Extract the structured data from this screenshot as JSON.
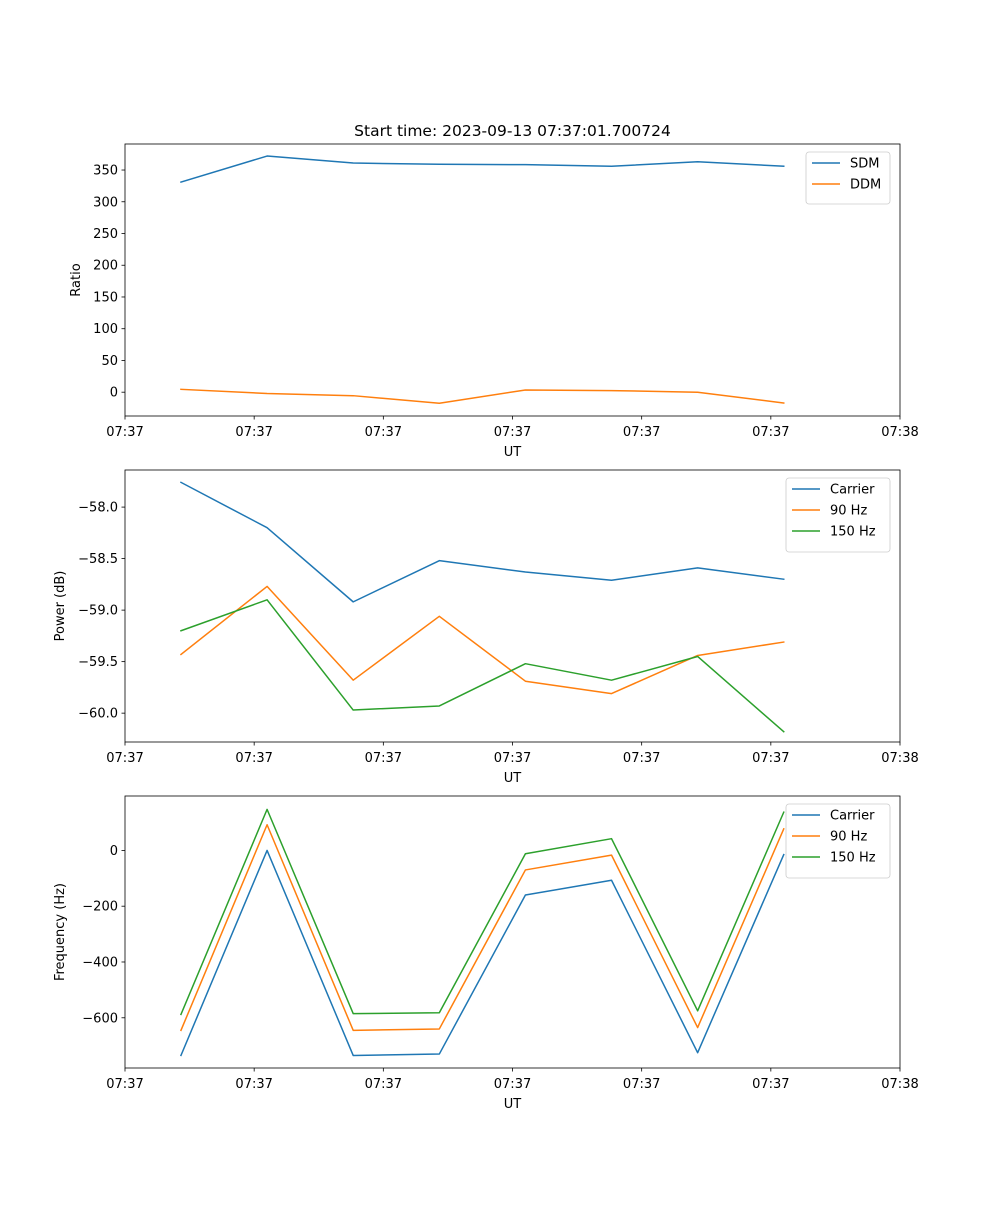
{
  "figure": {
    "title": "Start time: 2023-09-13 07:37:01.700724"
  },
  "chart_data": [
    {
      "type": "line",
      "title": "Start time: 2023-09-13 07:37:01.700724",
      "xlabel": "UT",
      "ylabel": "Ratio",
      "x": [
        0.85,
        1.85,
        2.85,
        3.85,
        4.85,
        5.85,
        6.85,
        7.85
      ],
      "xlim": [
        0.2,
        9.2
      ],
      "xticks": [
        0.2,
        1.7,
        3.2,
        4.7,
        6.2,
        7.7,
        9.2
      ],
      "xtick_labels": [
        "07:37",
        "07:37",
        "07:37",
        "07:37",
        "07:37",
        "07:37",
        "07:38"
      ],
      "ylim": [
        -37.5,
        391
      ],
      "yticks": [
        0,
        50,
        100,
        150,
        200,
        250,
        300,
        350
      ],
      "ytick_labels": [
        "0",
        "50",
        "100",
        "150",
        "200",
        "250",
        "300",
        "350"
      ],
      "legend": "top-right",
      "series": [
        {
          "name": "SDM",
          "color": "#1f77b4",
          "values": [
            331,
            372,
            361,
            359,
            358.5,
            356,
            363,
            356
          ]
        },
        {
          "name": "DDM",
          "color": "#ff7f0e",
          "values": [
            4.5,
            -2,
            -5.5,
            -17.5,
            3.5,
            2.5,
            0,
            -17
          ]
        }
      ]
    },
    {
      "type": "line",
      "xlabel": "UT",
      "ylabel": "Power (dB)",
      "x": [
        0.85,
        1.85,
        2.85,
        3.85,
        4.85,
        5.85,
        6.85,
        7.85
      ],
      "xlim": [
        0.2,
        9.2
      ],
      "xticks": [
        0.2,
        1.7,
        3.2,
        4.7,
        6.2,
        7.7,
        9.2
      ],
      "xtick_labels": [
        "07:37",
        "07:37",
        "07:37",
        "07:37",
        "07:37",
        "07:37",
        "07:38"
      ],
      "ylim": [
        -60.28,
        -57.64
      ],
      "yticks": [
        -60.0,
        -59.5,
        -59.0,
        -58.5,
        -58.0
      ],
      "ytick_labels": [
        "−60.0",
        "−59.5",
        "−59.0",
        "−58.5",
        "−58.0"
      ],
      "legend": "top-right",
      "series": [
        {
          "name": "Carrier",
          "color": "#1f77b4",
          "values": [
            -57.76,
            -58.2,
            -58.92,
            -58.52,
            -58.63,
            -58.71,
            -58.59,
            -58.7
          ]
        },
        {
          "name": "90 Hz",
          "color": "#ff7f0e",
          "values": [
            -59.43,
            -58.77,
            -59.68,
            -59.06,
            -59.69,
            -59.81,
            -59.44,
            -59.31
          ]
        },
        {
          "name": "150 Hz",
          "color": "#2ca02c",
          "values": [
            -59.2,
            -58.9,
            -59.97,
            -59.93,
            -59.52,
            -59.68,
            -59.45,
            -60.18
          ]
        }
      ]
    },
    {
      "type": "line",
      "xlabel": "UT",
      "ylabel": "Frequency (Hz)",
      "x": [
        0.85,
        1.85,
        2.85,
        3.85,
        4.85,
        5.85,
        6.85,
        7.85
      ],
      "xlim": [
        0.2,
        9.2
      ],
      "xticks": [
        0.2,
        1.7,
        3.2,
        4.7,
        6.2,
        7.7,
        9.2
      ],
      "xtick_labels": [
        "07:37",
        "07:37",
        "07:37",
        "07:37",
        "07:37",
        "07:37",
        "07:38"
      ],
      "ylim": [
        -780,
        195
      ],
      "yticks": [
        -600,
        -400,
        -200,
        0
      ],
      "ytick_labels": [
        "−600",
        "−400",
        "−200",
        "0"
      ],
      "legend": "top-right",
      "series": [
        {
          "name": "Carrier",
          "color": "#1f77b4",
          "values": [
            -735,
            0,
            -735,
            -730,
            -160,
            -107,
            -725,
            -15
          ]
        },
        {
          "name": "90 Hz",
          "color": "#ff7f0e",
          "values": [
            -645,
            92,
            -645,
            -640,
            -70,
            -17,
            -635,
            77
          ]
        },
        {
          "name": "150 Hz",
          "color": "#2ca02c",
          "values": [
            -588,
            147,
            -585,
            -582,
            -12,
            42,
            -575,
            137
          ]
        }
      ]
    }
  ]
}
